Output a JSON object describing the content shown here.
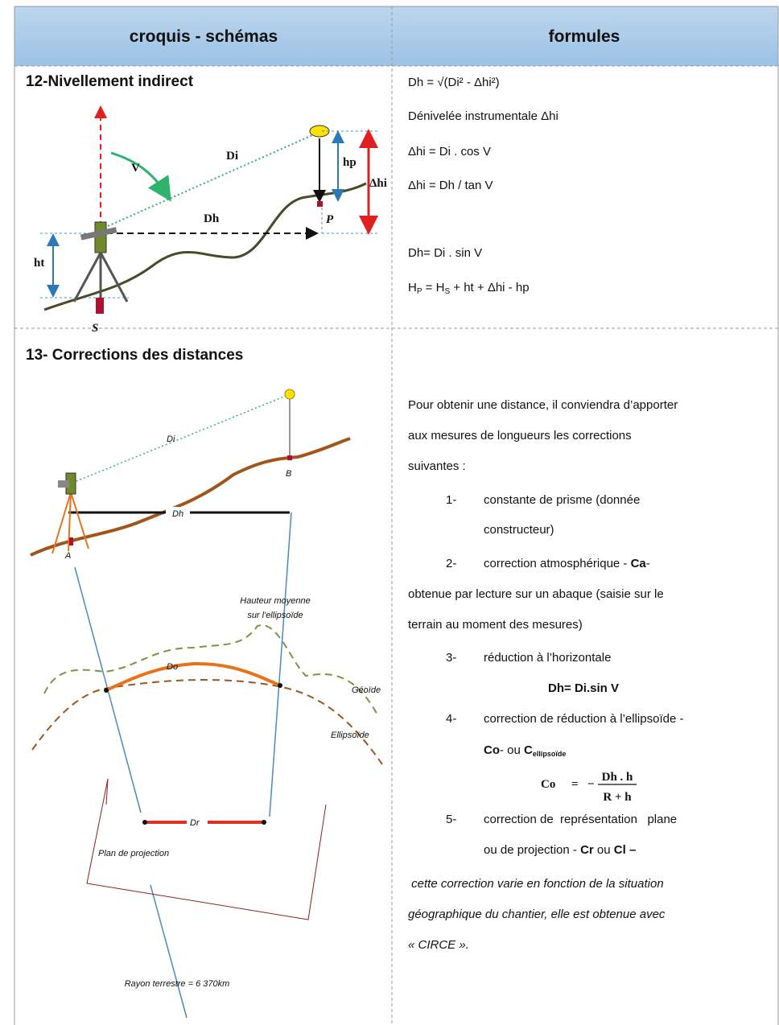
{
  "header": {
    "col1": "croquis - schémas",
    "col2": "formules"
  },
  "section12": {
    "title": "12-Nivellement indirect",
    "formulas": [
      "Dh = √(Di² - Δhi²)",
      "Dénivelée instrumentale Δhi",
      "Δhi = Di . cos V",
      "Δhi = Dh / tan V",
      "Dh= Di . sin V"
    ],
    "hp_formula": [
      "H",
      "P",
      " = H",
      "S",
      " + ht + Δhi - hp"
    ],
    "diagram": {
      "V": "V",
      "Di": "Di",
      "Dh": "Dh",
      "hp": "hp",
      "dhi": "Δhi",
      "ht": "ht",
      "P": "P",
      "S": "S"
    }
  },
  "section13": {
    "title": "13- Corrections des distances",
    "diagram": {
      "Di": "Di",
      "B": "B",
      "Dh": "Dh",
      "A": "A",
      "height": [
        "Hauteur moyenne",
        "sur l'ellipsoïde"
      ],
      "Do": "Do",
      "geoid": "Géoïde",
      "ellipsoid": "Ellipsoïde",
      "Dr": "Dr",
      "plane": "Plan de projection",
      "radius": "Rayon terrestre = 6 370km"
    },
    "intro": [
      "Pour obtenir une distance, il conviendra d’apporter",
      "aux mesures de longueurs les corrections",
      "suivantes :"
    ],
    "item1": {
      "num": "1-",
      "lines": [
        "constante de prisme (donnée",
        "constructeur)"
      ]
    },
    "item2": {
      "num": "2-",
      "text": "correction atmosphérique - ",
      "bold": "Ca",
      "after": "-",
      "lines": [
        "obtenue par lecture sur un abaque (saisie sur le",
        "terrain au moment des mesures)"
      ]
    },
    "item3": {
      "num": "3-",
      "text": "réduction à l’horizontale",
      "formula": "Dh= Di.sin V"
    },
    "item4": {
      "num": "4-",
      "text": "correction de réduction à l’ellipsoïde -",
      "line2": [
        "Co",
        "- ou ",
        "C",
        "ellipsoïde"
      ],
      "formula": {
        "lhs": "Co",
        "eq": "=",
        "sign": "−",
        "num": "Dh . h",
        "den": "R + h"
      }
    },
    "item5": {
      "num": "5-",
      "text": "correction de  représentation   plane",
      "line2": [
        "ou de projection - ",
        "Cr",
        " ou ",
        "Cl –"
      ]
    },
    "note": [
      " cette correction varie en fonction de la situation",
      "géographique du chantier, elle est obtenue avec",
      "« CIRCE »."
    ]
  }
}
